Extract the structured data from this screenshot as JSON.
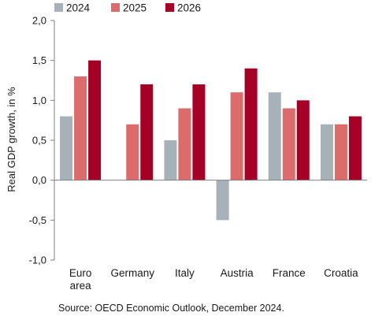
{
  "chart_data": {
    "type": "bar",
    "title": "",
    "xlabel": "",
    "ylabel": "Real GDP growth, in %",
    "ylim": [
      -1.0,
      2.0
    ],
    "yticks": [
      "-1,0",
      "-0,5",
      "0,0",
      "0,5",
      "1,0",
      "1,5",
      "2,0"
    ],
    "ytick_values": [
      -1.0,
      -0.5,
      0.0,
      0.5,
      1.0,
      1.5,
      2.0
    ],
    "grid": false,
    "legend_position": "top-left",
    "categories": [
      [
        "Euro",
        "area"
      ],
      [
        "Germany"
      ],
      [
        "Italy"
      ],
      [
        "Austria"
      ],
      [
        "France"
      ],
      [
        "Croatia"
      ]
    ],
    "series": [
      {
        "name": "2024",
        "color": "#a7b1b8",
        "values": [
          0.8,
          0.0,
          0.5,
          -0.5,
          1.1,
          0.7
        ]
      },
      {
        "name": "2025",
        "color": "#dc6b6b",
        "values": [
          1.3,
          0.7,
          0.9,
          1.1,
          0.9,
          0.7
        ]
      },
      {
        "name": "2026",
        "color": "#a50026",
        "values": [
          1.5,
          1.2,
          1.2,
          1.4,
          1.0,
          0.8
        ]
      }
    ],
    "source": "Source: OECD Economic Outlook, December 2024."
  }
}
